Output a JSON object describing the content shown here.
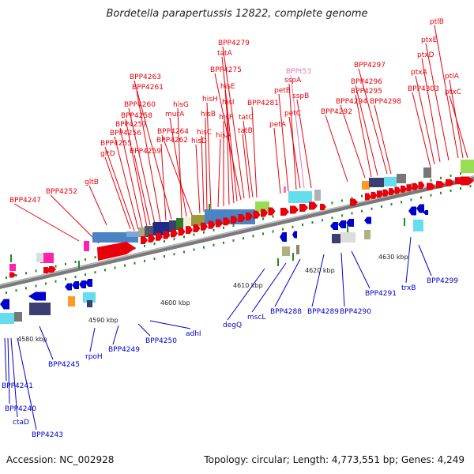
{
  "title": "Bordetella parapertussis 12822, complete genome",
  "footer": {
    "accession": "Accession: NC_002928",
    "topology": "Topology: circular; Length: 4,773,551 bp; Genes: 4,249"
  },
  "colors": {
    "forward": "#e8000b",
    "reverse": "#0000cc",
    "rna": "#e07bb0",
    "tick": "#1e8c1e",
    "backbone": "#8c8c8c"
  },
  "scale_labels": [
    "4580 kbp",
    "4590 kbp",
    "4600 kbp",
    "4610 kbp",
    "4620 kbp",
    "4630 kbp"
  ],
  "forward_labels": [
    "BPP4247",
    "BPP4252",
    "gltB",
    "gltD",
    "BPP4255",
    "BPP4256",
    "BPP4257",
    "BPP4258",
    "BPP4259",
    "BPP4260",
    "BPP4261",
    "BPP4262",
    "BPP4263",
    "hisG",
    "murA",
    "BPP4264",
    "hisD",
    "hisC",
    "hisB",
    "hisH",
    "hisA",
    "hisF",
    "hisI",
    "hisE",
    "tatA",
    "BPP4275",
    "BPP4279",
    "tatB",
    "tatC",
    "BPP4281",
    "petA",
    "petB",
    "sspA",
    "BPPt53",
    "sspB",
    "petC",
    "BPP4292",
    "BPP4294",
    "BPP4295",
    "BPP4296",
    "BPP4297",
    "BPP4298",
    "BPP4303",
    "ptxA",
    "ptxD",
    "ptxE",
    "ptlB",
    "ptlA",
    "ptxC"
  ],
  "reverse_labels": [
    "BPP4241",
    "BPP4240",
    "ctaD",
    "BPP4243",
    "BPP4245",
    "rpoH",
    "BPP4249",
    "BPP4250",
    "adhI",
    "degQ",
    "mscL",
    "BPP4288",
    "BPP4289",
    "BPP4290",
    "BPP4291",
    "trxB",
    "BPP4299"
  ]
}
